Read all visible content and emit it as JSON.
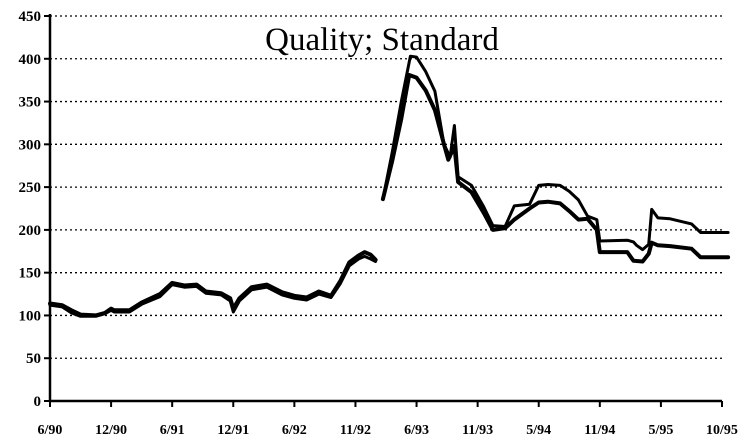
{
  "chart_data": {
    "type": "line",
    "title": "Quality; Standard",
    "xlabel": "",
    "ylabel": "",
    "ylim": [
      0,
      450
    ],
    "y_ticks": [
      0,
      50,
      100,
      150,
      200,
      250,
      300,
      350,
      400,
      450
    ],
    "x_ticks": [
      "6/90",
      "12/90",
      "6/91",
      "12/91",
      "6/92",
      "11/92",
      "6/93",
      "11/93",
      "5/94",
      "11/94",
      "5/95",
      "10/95"
    ],
    "grid": "horizontal-dotted",
    "series": [
      {
        "points": [
          [
            0,
            114
          ],
          [
            0.2,
            112
          ],
          [
            0.35,
            106
          ],
          [
            0.5,
            101
          ],
          [
            0.75,
            100
          ],
          [
            0.9,
            103
          ],
          [
            1.0,
            108
          ],
          [
            1.05,
            106
          ],
          [
            1.3,
            106
          ],
          [
            1.5,
            115
          ],
          [
            1.8,
            125
          ],
          [
            2.0,
            138
          ],
          [
            2.2,
            135
          ],
          [
            2.4,
            136
          ],
          [
            2.55,
            128
          ],
          [
            2.8,
            126
          ],
          [
            2.95,
            120
          ],
          [
            3.0,
            108
          ],
          [
            3.1,
            120
          ],
          [
            3.3,
            133
          ],
          [
            3.55,
            136
          ],
          [
            3.8,
            127
          ],
          [
            4.0,
            123
          ],
          [
            4.2,
            121
          ],
          [
            4.4,
            128
          ],
          [
            4.6,
            123
          ],
          [
            4.75,
            140
          ],
          [
            4.9,
            162
          ],
          [
            5.05,
            170
          ],
          [
            5.15,
            174
          ],
          [
            5.25,
            171
          ],
          [
            5.33,
            165
          ]
        ]
      },
      {
        "points": [
          [
            0,
            112
          ],
          [
            0.2,
            110
          ],
          [
            0.35,
            103
          ],
          [
            0.5,
            99
          ],
          [
            0.75,
            99
          ],
          [
            0.9,
            102
          ],
          [
            1.0,
            106
          ],
          [
            1.05,
            104
          ],
          [
            1.3,
            104
          ],
          [
            1.5,
            113
          ],
          [
            1.8,
            122
          ],
          [
            2.0,
            136
          ],
          [
            2.2,
            133
          ],
          [
            2.4,
            134
          ],
          [
            2.55,
            126
          ],
          [
            2.8,
            124
          ],
          [
            2.95,
            117
          ],
          [
            3.0,
            104
          ],
          [
            3.1,
            117
          ],
          [
            3.3,
            130
          ],
          [
            3.55,
            133
          ],
          [
            3.8,
            124
          ],
          [
            4.0,
            120
          ],
          [
            4.2,
            118
          ],
          [
            4.4,
            125
          ],
          [
            4.6,
            121
          ],
          [
            4.75,
            137
          ],
          [
            4.9,
            158
          ],
          [
            5.05,
            166
          ],
          [
            5.15,
            169
          ],
          [
            5.25,
            166
          ],
          [
            5.33,
            163
          ]
        ]
      },
      {
        "points": [
          [
            5.45,
            236
          ],
          [
            5.6,
            290
          ],
          [
            5.75,
            350
          ],
          [
            5.9,
            403
          ],
          [
            6.0,
            402
          ],
          [
            6.15,
            385
          ],
          [
            6.3,
            362
          ],
          [
            6.45,
            300
          ],
          [
            6.55,
            285
          ],
          [
            6.62,
            322
          ],
          [
            6.68,
            262
          ],
          [
            6.9,
            252
          ],
          [
            7.1,
            227
          ],
          [
            7.25,
            205
          ],
          [
            7.45,
            204
          ],
          [
            7.6,
            228
          ],
          [
            7.85,
            230
          ],
          [
            8.0,
            252
          ],
          [
            8.15,
            253
          ],
          [
            8.35,
            252
          ],
          [
            8.5,
            245
          ],
          [
            8.65,
            235
          ],
          [
            8.8,
            216
          ],
          [
            8.95,
            212
          ],
          [
            9.0,
            187
          ],
          [
            9.45,
            188
          ],
          [
            9.55,
            186
          ],
          [
            9.6,
            182
          ],
          [
            9.7,
            177
          ],
          [
            9.8,
            183
          ],
          [
            9.85,
            224
          ],
          [
            9.95,
            214
          ],
          [
            10.15,
            213
          ],
          [
            10.5,
            207
          ],
          [
            10.65,
            197
          ],
          [
            11.1,
            197
          ]
        ]
      },
      {
        "points": [
          [
            5.45,
            236
          ],
          [
            5.6,
            280
          ],
          [
            5.75,
            330
          ],
          [
            5.88,
            381
          ],
          [
            6.0,
            378
          ],
          [
            6.15,
            363
          ],
          [
            6.3,
            340
          ],
          [
            6.45,
            300
          ],
          [
            6.52,
            282
          ],
          [
            6.62,
            298
          ],
          [
            6.68,
            256
          ],
          [
            6.9,
            244
          ],
          [
            7.1,
            220
          ],
          [
            7.25,
            200
          ],
          [
            7.45,
            202
          ],
          [
            7.6,
            212
          ],
          [
            7.85,
            225
          ],
          [
            8.0,
            232
          ],
          [
            8.15,
            233
          ],
          [
            8.35,
            231
          ],
          [
            8.5,
            222
          ],
          [
            8.65,
            212
          ],
          [
            8.8,
            213
          ],
          [
            8.95,
            200
          ],
          [
            9.0,
            174
          ],
          [
            9.45,
            174
          ],
          [
            9.55,
            164
          ],
          [
            9.7,
            163
          ],
          [
            9.8,
            172
          ],
          [
            9.85,
            185
          ],
          [
            9.95,
            182
          ],
          [
            10.15,
            181
          ],
          [
            10.5,
            178
          ],
          [
            10.65,
            168
          ],
          [
            11.1,
            168
          ]
        ]
      }
    ]
  }
}
